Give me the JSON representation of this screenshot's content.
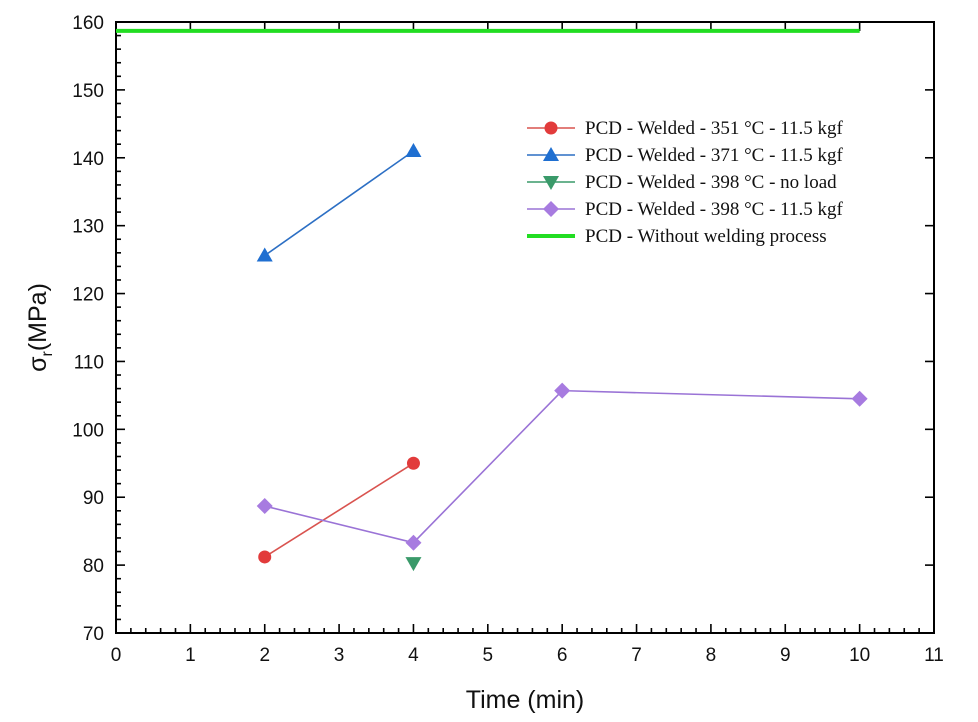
{
  "chart_data": {
    "type": "line",
    "title": "",
    "xlabel": "Time (min)",
    "ylabel_main": "σ",
    "ylabel_sub": "r",
    "ylabel_unit": "(MPa)",
    "xlim": [
      0,
      11
    ],
    "ylim": [
      70,
      160
    ],
    "x_ticks": [
      0,
      1,
      2,
      3,
      4,
      5,
      6,
      7,
      8,
      9,
      10,
      11
    ],
    "y_ticks": [
      70,
      80,
      90,
      100,
      110,
      120,
      130,
      140,
      150,
      160
    ],
    "grid": false,
    "legend_position": "upper-right",
    "series": [
      {
        "name": "PCD - Welded - 351 °C - 11.5 kgf",
        "marker": "circle",
        "color": "#e23b3b",
        "line_color": "#d9534f",
        "x": [
          2,
          4
        ],
        "y": [
          81.2,
          95.0
        ]
      },
      {
        "name": "PCD - Welded - 371 °C - 11.5 kgf",
        "marker": "triangle-up",
        "color": "#1f6fd1",
        "line_color": "#2c6fc4",
        "x": [
          2,
          4
        ],
        "y": [
          125.6,
          141.0
        ]
      },
      {
        "name": "PCD - Welded - 398 °C - no load",
        "marker": "triangle-down",
        "color": "#3a9a6a",
        "line_color": "#3a9a6a",
        "x": [
          4
        ],
        "y": [
          80.3
        ]
      },
      {
        "name": "PCD - Welded - 398 °C - 11.5 kgf",
        "marker": "diamond",
        "color": "#a77be0",
        "line_color": "#9a73d6",
        "x": [
          2,
          4,
          6,
          10
        ],
        "y": [
          88.7,
          83.3,
          105.7,
          104.5
        ]
      },
      {
        "name": "PCD - Without welding process",
        "marker": "none",
        "color": "#22dd22",
        "line_color": "#22dd22",
        "x": [
          0,
          10
        ],
        "y": [
          158.7,
          158.7
        ],
        "thick": true
      }
    ]
  }
}
